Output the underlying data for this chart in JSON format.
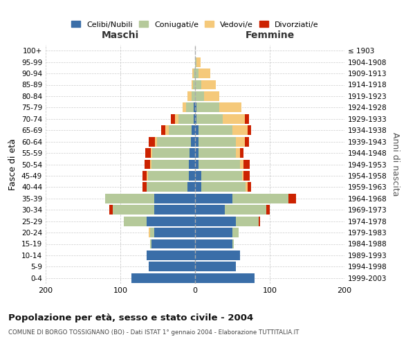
{
  "age_groups": [
    "0-4",
    "5-9",
    "10-14",
    "15-19",
    "20-24",
    "25-29",
    "30-34",
    "35-39",
    "40-44",
    "45-49",
    "50-54",
    "55-59",
    "60-64",
    "65-69",
    "70-74",
    "75-79",
    "80-84",
    "85-89",
    "90-94",
    "95-99",
    "100+"
  ],
  "birth_years": [
    "1999-2003",
    "1994-1998",
    "1989-1993",
    "1984-1988",
    "1979-1983",
    "1974-1978",
    "1969-1973",
    "1964-1968",
    "1959-1963",
    "1954-1958",
    "1949-1953",
    "1944-1948",
    "1939-1943",
    "1934-1938",
    "1929-1933",
    "1924-1928",
    "1919-1923",
    "1914-1918",
    "1909-1913",
    "1904-1908",
    "≤ 1903"
  ],
  "male": {
    "celibi": [
      85,
      62,
      65,
      58,
      55,
      65,
      55,
      55,
      10,
      8,
      8,
      7,
      6,
      5,
      2,
      2,
      0,
      0,
      0,
      0,
      0
    ],
    "coniugati": [
      0,
      0,
      0,
      2,
      5,
      30,
      55,
      65,
      55,
      55,
      50,
      50,
      45,
      30,
      20,
      10,
      5,
      3,
      2,
      0,
      0
    ],
    "vedovi": [
      0,
      0,
      0,
      0,
      2,
      0,
      0,
      0,
      0,
      2,
      2,
      2,
      3,
      5,
      5,
      5,
      5,
      2,
      2,
      0,
      0
    ],
    "divorziati": [
      0,
      0,
      0,
      0,
      0,
      0,
      5,
      0,
      5,
      5,
      8,
      8,
      8,
      5,
      5,
      0,
      0,
      0,
      0,
      0,
      0
    ]
  },
  "female": {
    "nubili": [
      80,
      55,
      60,
      50,
      50,
      55,
      40,
      50,
      8,
      8,
      5,
      5,
      5,
      5,
      2,
      2,
      0,
      0,
      0,
      0,
      0
    ],
    "coniugate": [
      0,
      0,
      0,
      2,
      8,
      30,
      55,
      75,
      60,
      55,
      55,
      50,
      50,
      45,
      35,
      30,
      12,
      8,
      5,
      2,
      0
    ],
    "vedove": [
      0,
      0,
      0,
      0,
      0,
      0,
      0,
      0,
      2,
      2,
      5,
      5,
      12,
      20,
      30,
      30,
      20,
      20,
      15,
      5,
      0
    ],
    "divorziate": [
      0,
      0,
      0,
      0,
      0,
      2,
      5,
      10,
      5,
      8,
      8,
      5,
      5,
      5,
      5,
      0,
      0,
      0,
      0,
      0,
      0
    ]
  },
  "colors": {
    "celibi": "#3a6ea8",
    "coniugati": "#b5c99a",
    "vedovi": "#f5c97a",
    "divorziati": "#cc2200"
  },
  "xlim": [
    -200,
    200
  ],
  "xticks": [
    -200,
    -100,
    0,
    100,
    200
  ],
  "xticklabels": [
    "200",
    "100",
    "0",
    "100",
    "200"
  ],
  "title": "Popolazione per età, sesso e stato civile - 2004",
  "subtitle": "COMUNE DI BORGO TOSSIGNANO (BO) - Dati ISTAT 1° gennaio 2004 - Elaborazione TUTTITALIA.IT",
  "ylabel_left": "Fasce di età",
  "ylabel_right": "Anni di nascita",
  "label_maschi": "Maschi",
  "label_femmine": "Femmine",
  "legend_labels": [
    "Celibi/Nubili",
    "Coniugati/e",
    "Vedovi/e",
    "Divorziati/e"
  ],
  "background_color": "#ffffff",
  "grid_color": "#cccccc"
}
